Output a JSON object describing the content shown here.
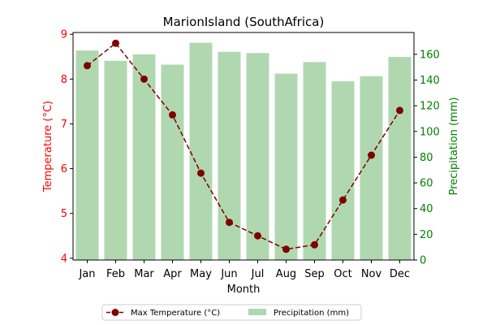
{
  "chart_data": {
    "type": "bar+line",
    "title": "MarionIsland (SouthAfrica)",
    "xlabel": "Month",
    "categories": [
      "Jan",
      "Feb",
      "Mar",
      "Apr",
      "May",
      "Jun",
      "Jul",
      "Aug",
      "Sep",
      "Oct",
      "Nov",
      "Dec"
    ],
    "left_axis": {
      "label": "Temperature (°C)",
      "color": "#ff0000",
      "ylim": [
        3.96,
        9.04
      ],
      "ticks": [
        4,
        5,
        6,
        7,
        8,
        9
      ]
    },
    "right_axis": {
      "label": "Precipitation (mm)",
      "color": "#008000",
      "ylim": [
        0,
        177
      ],
      "ticks": [
        0,
        20,
        40,
        60,
        80,
        100,
        120,
        140,
        160
      ]
    },
    "series": [
      {
        "name": "Max Temperature (°C)",
        "kind": "line",
        "axis": "left",
        "color": "#800000",
        "line_style": "dashed",
        "marker": "circle",
        "values": [
          8.3,
          8.8,
          8.0,
          7.2,
          5.9,
          4.8,
          4.5,
          4.2,
          4.3,
          5.3,
          6.3,
          7.3
        ]
      },
      {
        "name": "Precipitation (mm)",
        "kind": "bar",
        "axis": "right",
        "color": "#b0d8b0",
        "values": [
          163,
          155,
          160,
          152,
          169,
          162,
          161,
          145,
          154,
          139,
          143,
          158
        ]
      }
    ],
    "legend_position": "bottom-center",
    "grid": false
  }
}
